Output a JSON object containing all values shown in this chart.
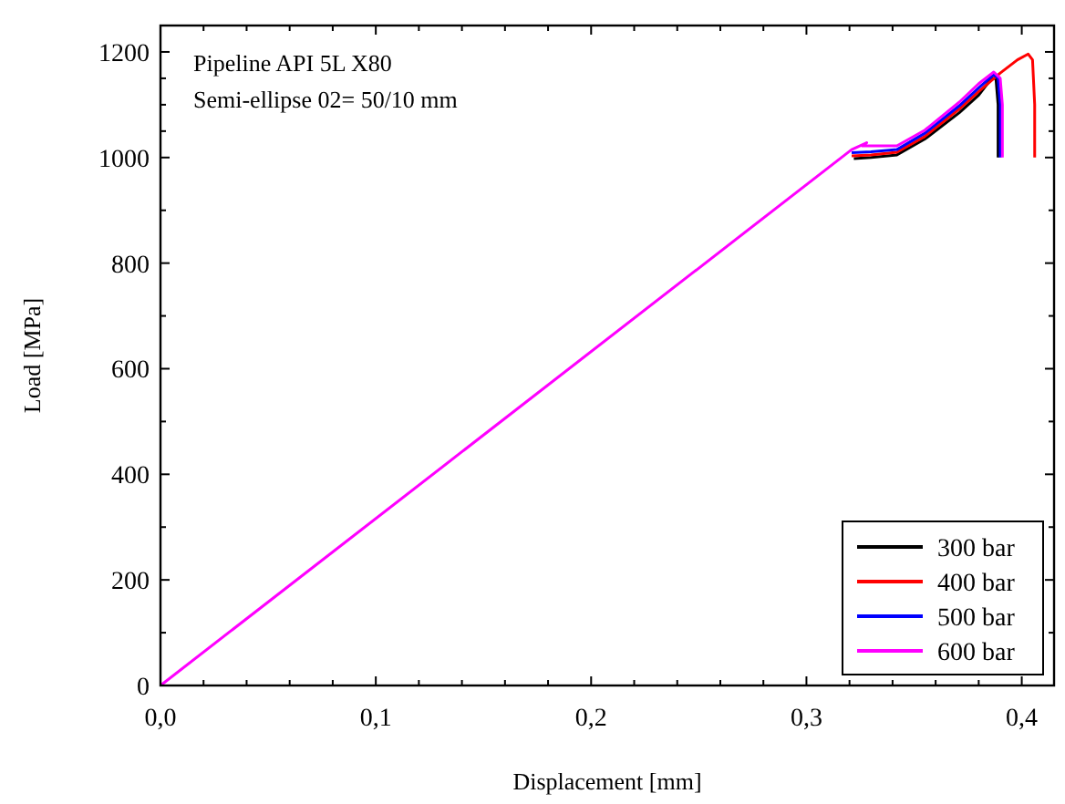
{
  "chart_data": {
    "type": "line",
    "xlabel": "Displacement [mm]",
    "ylabel": "Load [MPa]",
    "annotations": [
      "Pipeline API 5L X80",
      "Semi-ellipse 02= 50/10 mm"
    ],
    "xlim": [
      0,
      0.415
    ],
    "ylim": [
      0,
      1250
    ],
    "xticks": [
      {
        "value": 0,
        "label": "0,0"
      },
      {
        "value": 0.02,
        "label": null
      },
      {
        "value": 0.04,
        "label": null
      },
      {
        "value": 0.06,
        "label": null
      },
      {
        "value": 0.08,
        "label": null
      },
      {
        "value": 0.1,
        "label": "0,1"
      },
      {
        "value": 0.12,
        "label": null
      },
      {
        "value": 0.14,
        "label": null
      },
      {
        "value": 0.16,
        "label": null
      },
      {
        "value": 0.18,
        "label": null
      },
      {
        "value": 0.2,
        "label": "0,2"
      },
      {
        "value": 0.22,
        "label": null
      },
      {
        "value": 0.24,
        "label": null
      },
      {
        "value": 0.26,
        "label": null
      },
      {
        "value": 0.28,
        "label": null
      },
      {
        "value": 0.3,
        "label": "0,3"
      },
      {
        "value": 0.32,
        "label": null
      },
      {
        "value": 0.34,
        "label": null
      },
      {
        "value": 0.36,
        "label": null
      },
      {
        "value": 0.38,
        "label": null
      },
      {
        "value": 0.4,
        "label": "0,4"
      }
    ],
    "yticks": [
      0,
      {
        "value": 100,
        "label": null
      },
      200,
      {
        "value": 300,
        "label": null
      },
      400,
      {
        "value": 500,
        "label": null
      },
      600,
      {
        "value": 700,
        "label": null
      },
      800,
      {
        "value": 900,
        "label": null
      },
      1000,
      {
        "value": 1050,
        "label": null
      },
      {
        "value": 1100,
        "label": null
      },
      {
        "value": 1150,
        "label": null
      },
      1200
    ],
    "grid": false,
    "legend": "bottom right",
    "marker": "none",
    "line_style": "solid",
    "series": [
      {
        "name": "300 bar",
        "color": "#000000",
        "x": [
          0.322,
          0.33,
          0.342,
          0.355,
          0.371,
          0.38,
          0.386,
          0.388,
          0.389,
          0.389
        ],
        "values": [
          998,
          1000,
          1005,
          1035,
          1085,
          1118,
          1150,
          1150,
          1100,
          1000
        ]
      },
      {
        "name": "400 bar",
        "color": "#ff0000",
        "x": [
          0.321,
          0.33,
          0.342,
          0.355,
          0.371,
          0.38,
          0.39,
          0.398,
          0.403,
          0.405,
          0.406,
          0.406
        ],
        "values": [
          1003,
          1005,
          1010,
          1040,
          1092,
          1125,
          1160,
          1185,
          1196,
          1185,
          1100,
          1000
        ]
      },
      {
        "name": "500 bar",
        "color": "#0000ff",
        "x": [
          0.321,
          0.33,
          0.342,
          0.355,
          0.371,
          0.38,
          0.387,
          0.389,
          0.39,
          0.39
        ],
        "values": [
          1009,
          1011,
          1015,
          1046,
          1098,
          1132,
          1157,
          1150,
          1100,
          1000
        ]
      },
      {
        "name": "600 bar",
        "color": "#ff00ff",
        "x": [
          0,
          0.321,
          0.328,
          0.326,
          0.33,
          0.342,
          0.355,
          0.371,
          0.38,
          0.387,
          0.39,
          0.391,
          0.391
        ],
        "values": [
          0,
          1015,
          1028,
          1022,
          1022,
          1022,
          1052,
          1105,
          1140,
          1162,
          1150,
          1100,
          1000
        ]
      }
    ]
  }
}
